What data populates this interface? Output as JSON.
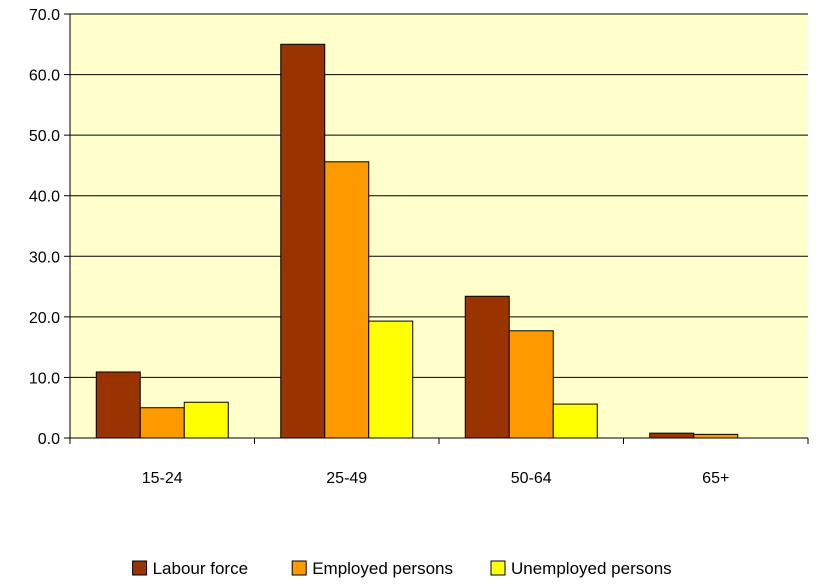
{
  "chart_data": {
    "type": "bar",
    "categories": [
      "15-24",
      "25-49",
      "50-64",
      "65+"
    ],
    "series": [
      {
        "name": "Labour force",
        "color": "#993300",
        "values": [
          10.9,
          65.0,
          23.4,
          0.8
        ]
      },
      {
        "name": "Employed persons",
        "color": "#ff9900",
        "values": [
          5.0,
          45.6,
          17.7,
          0.6
        ]
      },
      {
        "name": "Unemployed persons",
        "color": "#ffff00",
        "values": [
          5.9,
          19.3,
          5.6,
          0.0
        ]
      }
    ],
    "ylim": [
      0,
      70
    ],
    "yticks": [
      "0.0",
      "10.0",
      "20.0",
      "30.0",
      "40.0",
      "50.0",
      "60.0",
      "70.0"
    ],
    "grid": true,
    "plot_background": "#ffffcc",
    "legend_position": "bottom"
  }
}
